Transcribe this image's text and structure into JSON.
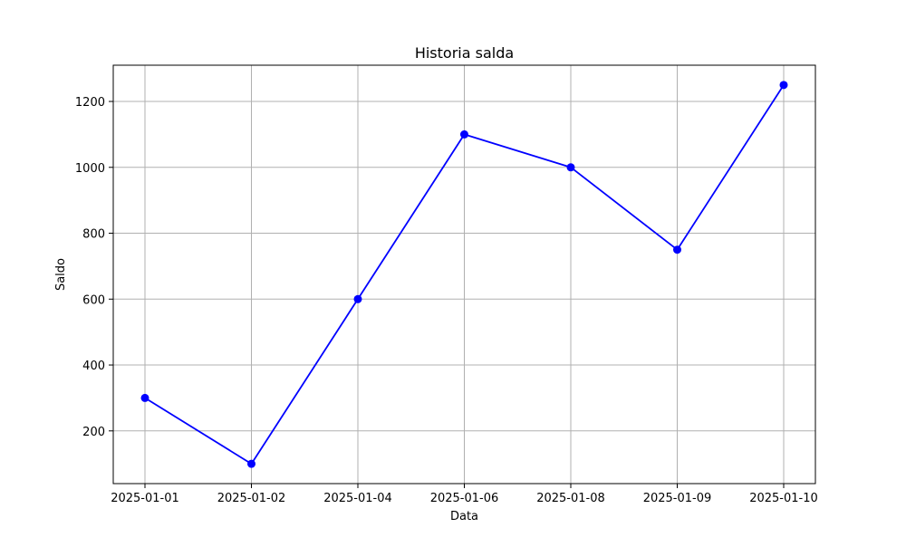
{
  "chart_data": {
    "type": "line",
    "title": "Historia salda",
    "xlabel": "Data",
    "ylabel": "Saldo",
    "categories": [
      "2025-01-01",
      "2025-01-02",
      "2025-01-04",
      "2025-01-06",
      "2025-01-08",
      "2025-01-09",
      "2025-01-10"
    ],
    "series": [
      {
        "values": [
          300,
          100,
          600,
          1100,
          1000,
          750,
          1250
        ],
        "color": "#0000ff",
        "marker": "circle"
      }
    ],
    "ylim": [
      40,
      1310
    ],
    "yticks": [
      200,
      400,
      600,
      800,
      1000,
      1200
    ],
    "grid": true,
    "legend": "none"
  }
}
